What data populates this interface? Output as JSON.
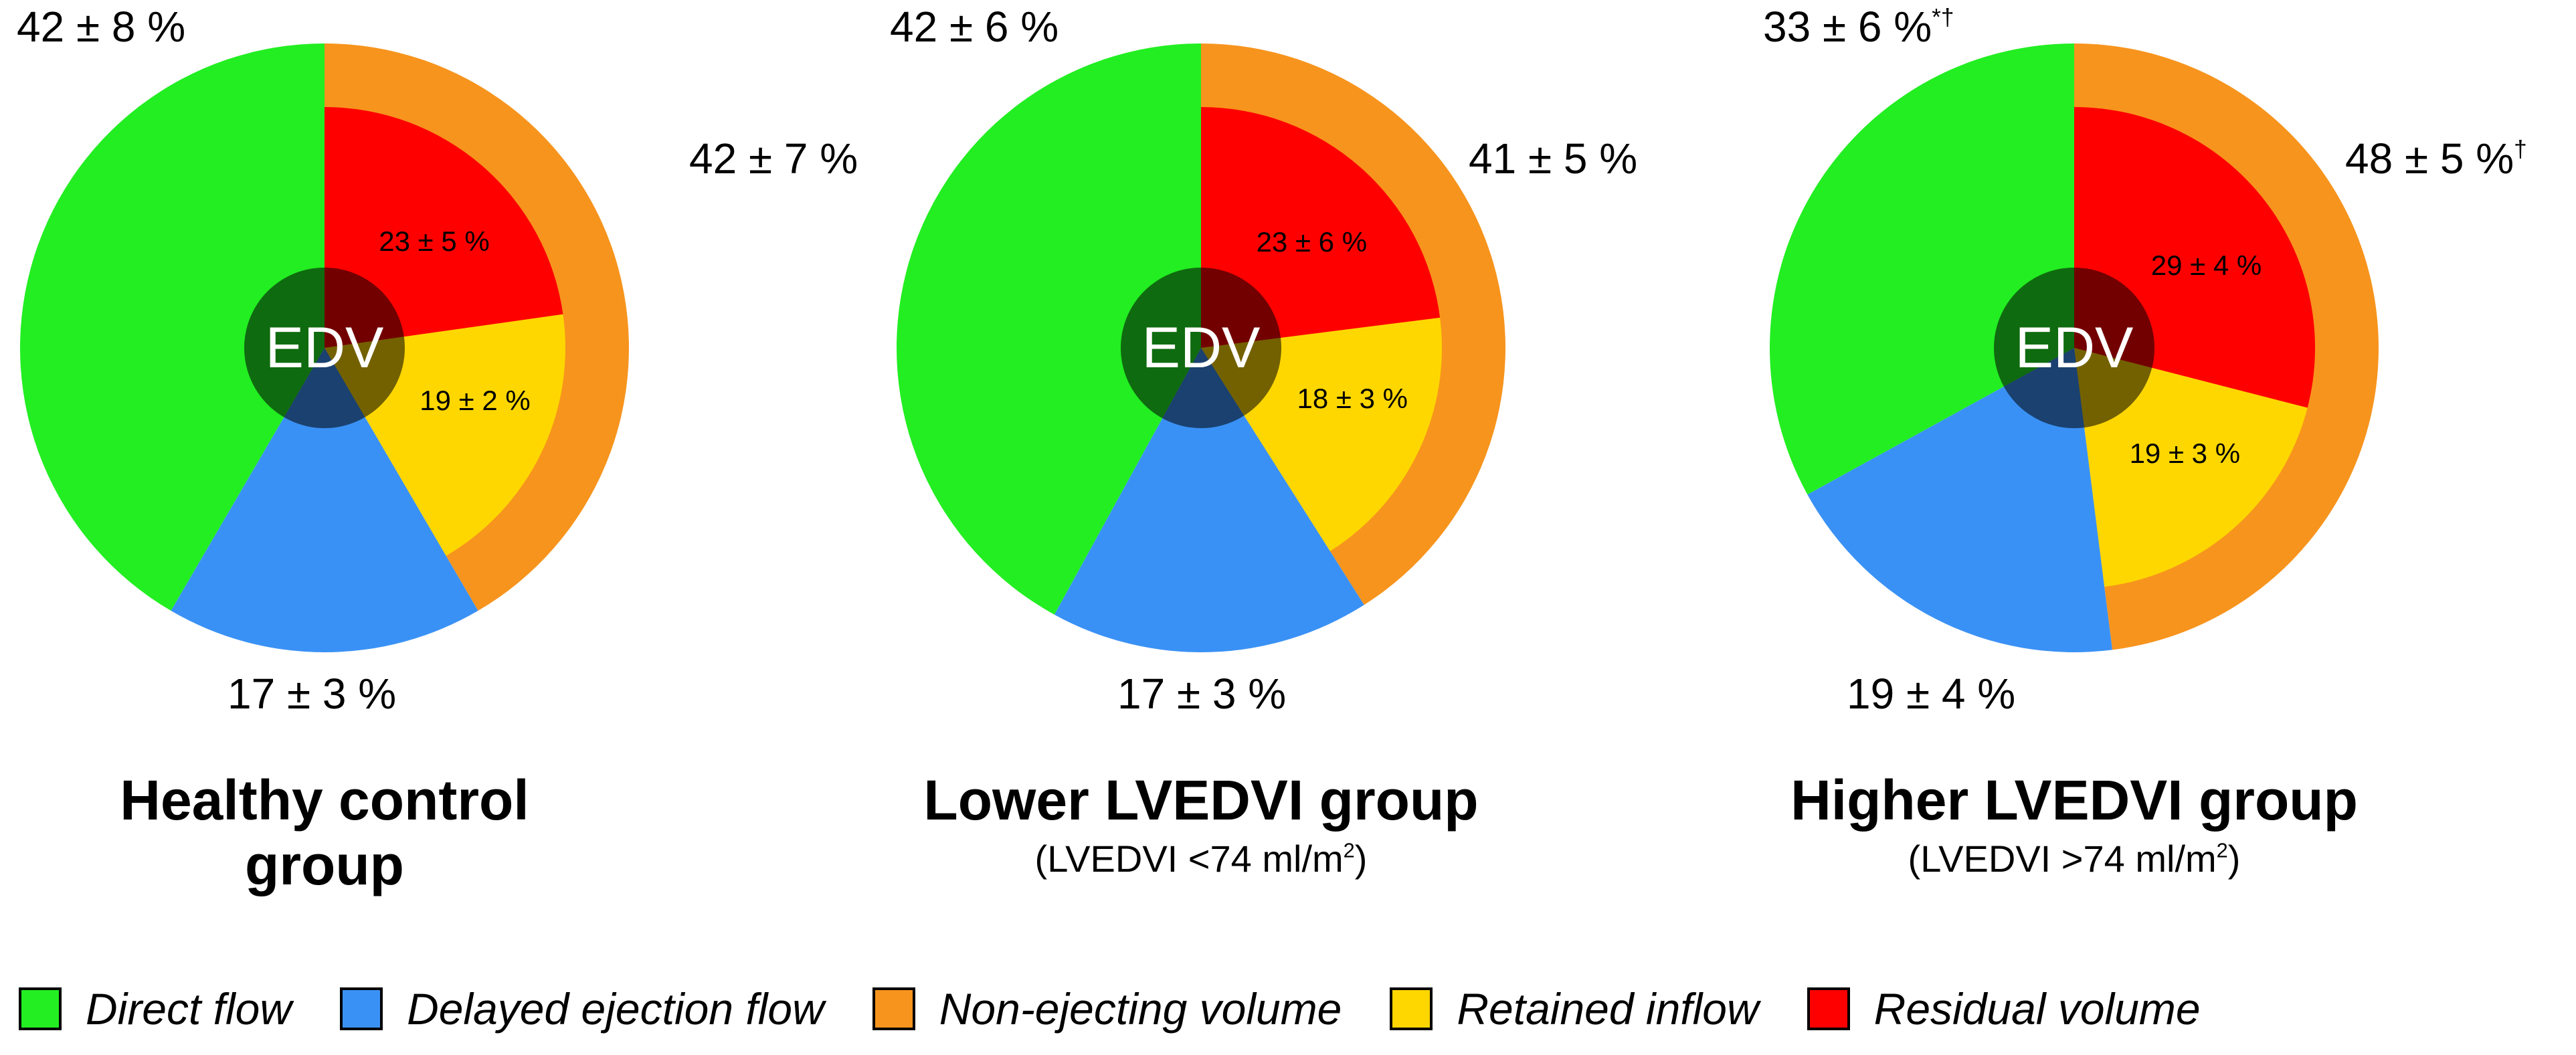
{
  "colors": {
    "direct_flow": "#22ee22",
    "delayed_ejection_flow": "#3a91f5",
    "non_ejecting_volume": "#f7941d",
    "retained_inflow": "#ffd700",
    "residual_volume": "#ff0000",
    "center_overlay": "#000000"
  },
  "center_label": "EDV",
  "chart_data": [
    {
      "type": "pie",
      "title": "Healthy control group",
      "subtitle": "",
      "components": [
        "Direct flow",
        "Delayed ejection flow",
        "Non-ejecting volume"
      ],
      "values": [
        42,
        17,
        42
      ],
      "labels": [
        "42 ± 8 %",
        "17 ± 3 %",
        "42 ± 7 %"
      ],
      "label_marks": [
        "",
        "",
        ""
      ],
      "non_ejecting_breakdown": {
        "components": [
          "Residual volume",
          "Retained inflow"
        ],
        "values": [
          23,
          19
        ],
        "labels": [
          "23 ± 5 %",
          "19 ± 2 %"
        ]
      }
    },
    {
      "type": "pie",
      "title": "Lower LVEDVI group",
      "subtitle": "(LVEDVI <74 ml/m2)",
      "components": [
        "Direct flow",
        "Delayed ejection flow",
        "Non-ejecting volume"
      ],
      "values": [
        42,
        17,
        41
      ],
      "labels": [
        "42 ± 6 %",
        "17 ± 3 %",
        "41 ± 5 %"
      ],
      "label_marks": [
        "",
        "",
        ""
      ],
      "non_ejecting_breakdown": {
        "components": [
          "Residual volume",
          "Retained inflow"
        ],
        "values": [
          23,
          18
        ],
        "labels": [
          "23 ± 6 %",
          "18 ± 3 %"
        ]
      }
    },
    {
      "type": "pie",
      "title": "Higher LVEDVI group",
      "subtitle": "(LVEDVI >74 ml/m2)",
      "components": [
        "Direct flow",
        "Delayed ejection flow",
        "Non-ejecting volume"
      ],
      "values": [
        33,
        19,
        48
      ],
      "labels": [
        "33 ± 6 %",
        "19 ± 4 %",
        "48 ± 5 %"
      ],
      "label_marks": [
        "*†",
        "",
        "†"
      ],
      "non_ejecting_breakdown": {
        "components": [
          "Residual volume",
          "Retained inflow"
        ],
        "values": [
          29,
          19
        ],
        "labels": [
          "29 ± 4 %",
          "19 ± 3 %"
        ]
      }
    }
  ],
  "legend": {
    "items": [
      {
        "label": "Direct flow",
        "color_key": "direct_flow"
      },
      {
        "label": "Delayed ejection flow",
        "color_key": "delayed_ejection_flow"
      },
      {
        "label": "Non-ejecting volume",
        "color_key": "non_ejecting_volume"
      },
      {
        "label": "Retained inflow",
        "color_key": "retained_inflow"
      },
      {
        "label": "Residual volume",
        "color_key": "residual_volume"
      }
    ]
  }
}
